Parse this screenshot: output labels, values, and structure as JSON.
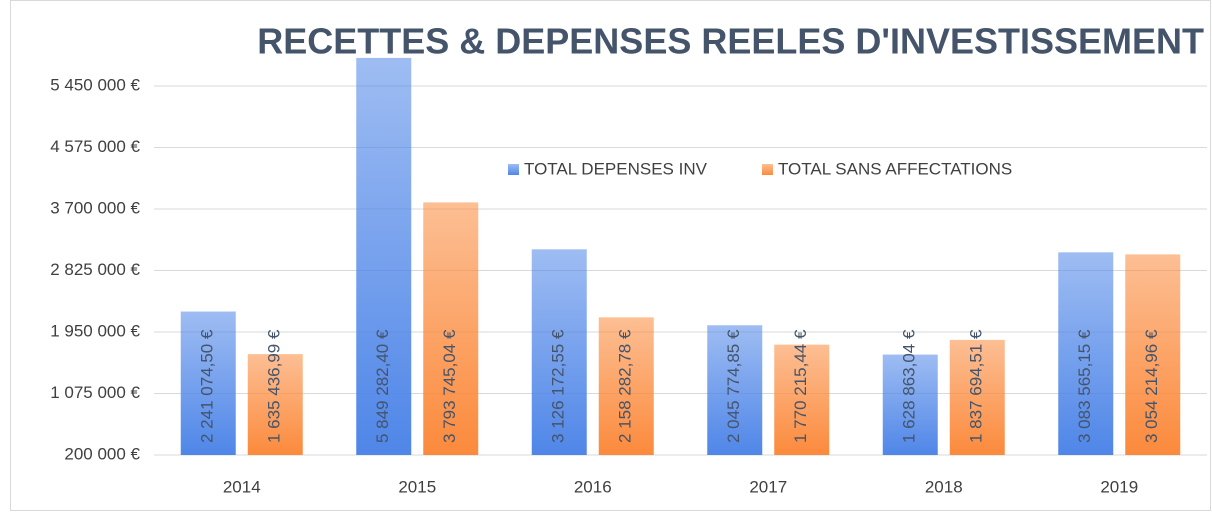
{
  "chart_data": {
    "type": "bar",
    "title": "RECETTES & DEPENSES REELES D'INVESTISSEMENT",
    "categories": [
      "2014",
      "2015",
      "2016",
      "2017",
      "2018",
      "2019"
    ],
    "series": [
      {
        "name": "TOTAL DEPENSES INV",
        "color": "#4f86e8",
        "values": [
          2241074.5,
          5849282.4,
          3126172.55,
          2045774.85,
          1628863.04,
          3083565.15
        ],
        "value_labels": [
          "2 241 074,50 €",
          "5 849 282,40 €",
          "3 126 172,55 €",
          "2 045 774,85 €",
          "1 628 863,04 €",
          "3 083 565,15 €"
        ]
      },
      {
        "name": "TOTAL SANS AFFECTATIONS",
        "color": "#fb8a3c",
        "values": [
          1635436.99,
          3793745.04,
          2158282.78,
          1770215.44,
          1837694.51,
          3054214.96
        ],
        "value_labels": [
          "1 635 436,99 €",
          "3 793 745,04 €",
          "2 158 282,78 €",
          "1 770 215,44 €",
          "1 837 694,51 €",
          "3 054 214,96 €"
        ]
      }
    ],
    "ylim": [
      200000,
      6325000
    ],
    "yticks": [
      {
        "value": 200000,
        "label": "200 000 €"
      },
      {
        "value": 1075000,
        "label": "1 075 000 €"
      },
      {
        "value": 1950000,
        "label": "1 950 000 €"
      },
      {
        "value": 2825000,
        "label": "2 825 000 €"
      },
      {
        "value": 3700000,
        "label": "3 700 000 €"
      },
      {
        "value": 4575000,
        "label": "4 575 000 €"
      },
      {
        "value": 5450000,
        "label": "5 450 000 €"
      }
    ],
    "grid": true
  }
}
